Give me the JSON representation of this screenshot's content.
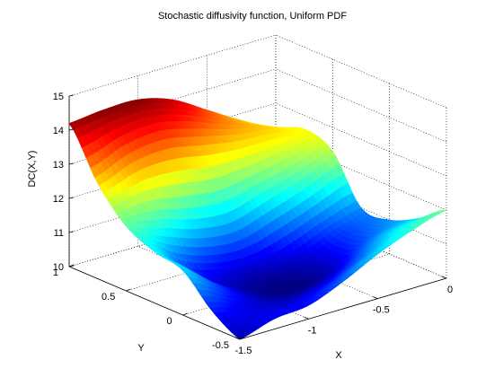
{
  "chart_data": {
    "type": "surface",
    "title": "Stochastic diffusivity function, Uniform PDF",
    "xlabel": "X",
    "ylabel": "Y",
    "zlabel": "DC(X,Y)",
    "xlim": [
      -1.5,
      0
    ],
    "ylim": [
      -0.5,
      1
    ],
    "zlim": [
      10,
      15
    ],
    "x_ticks": [
      -1.5,
      -1,
      -0.5,
      0
    ],
    "x_tick_labels": [
      "-1.5",
      "-1",
      "-0.5",
      "0"
    ],
    "y_ticks": [
      -0.5,
      0,
      0.5,
      1
    ],
    "y_tick_labels": [
      "-0.5",
      "0",
      "0.5",
      "1"
    ],
    "z_ticks": [
      10,
      11,
      12,
      13,
      14,
      15
    ],
    "z_tick_labels": [
      "10",
      "11",
      "12",
      "13",
      "14",
      "15"
    ],
    "grid": true,
    "colormap": "jet",
    "x": [
      -1.5,
      -1.25,
      -1.0,
      -0.75,
      -0.5,
      -0.25,
      0.0
    ],
    "y": [
      -0.5,
      -0.25,
      0.0,
      0.25,
      0.5,
      0.75,
      1.0
    ],
    "z": [
      [
        10.0,
        10.3,
        10.4,
        10.8,
        11.3,
        11.7,
        12.0
      ],
      [
        10.5,
        10.25,
        10.1,
        10.2,
        10.6,
        11.2,
        11.4
      ],
      [
        11.3,
        10.6,
        10.0,
        9.8,
        9.95,
        10.6,
        11.0
      ],
      [
        11.5,
        10.6,
        10.2,
        10.1,
        10.3,
        10.7,
        11.0
      ],
      [
        11.9,
        11.7,
        11.4,
        11.3,
        11.6,
        11.9,
        12.3
      ],
      [
        12.8,
        13.2,
        13.3,
        13.1,
        12.9,
        12.8,
        12.6
      ],
      [
        14.2,
        14.3,
        14.3,
        14.0,
        13.4,
        12.8,
        12.3
      ]
    ]
  }
}
